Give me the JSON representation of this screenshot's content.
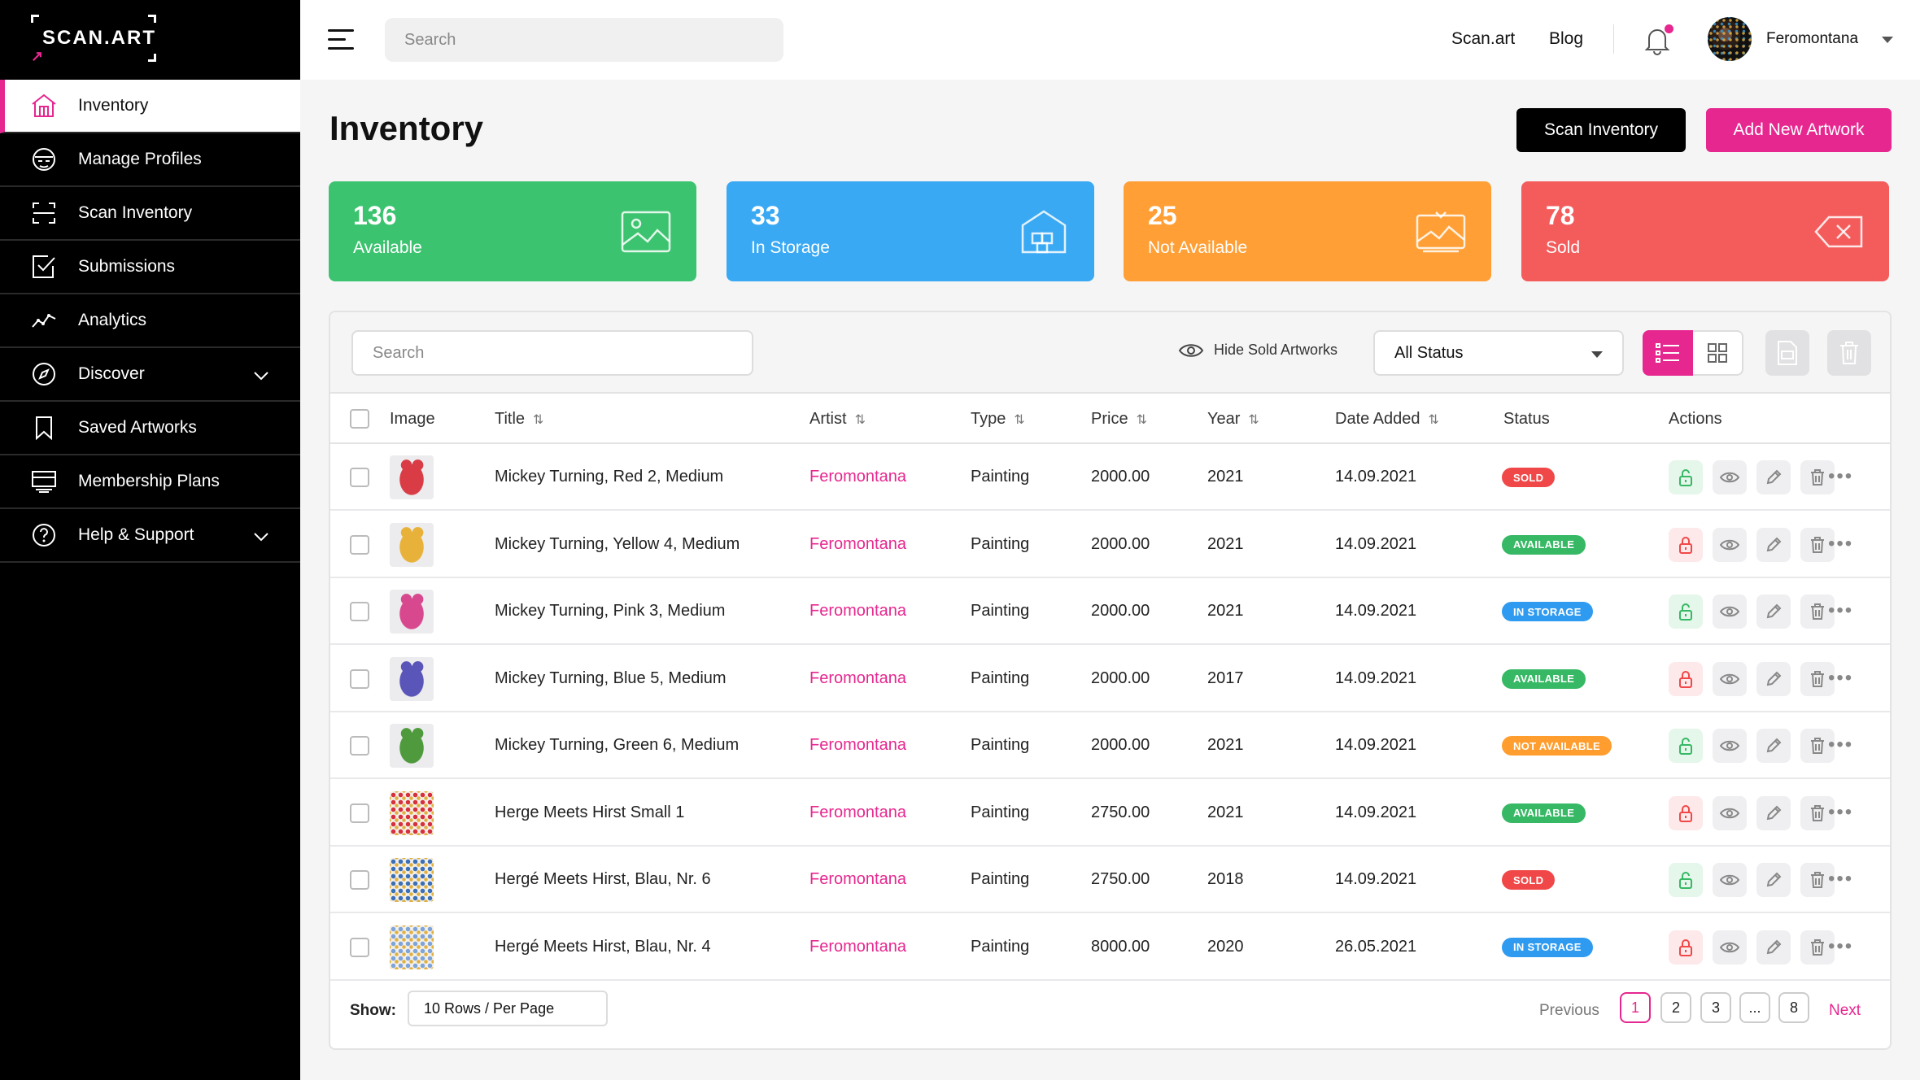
{
  "app": {
    "logo_text": "SCAN.ART"
  },
  "sidebar": {
    "items": [
      {
        "label": "Inventory",
        "icon": "home-icon",
        "active": true
      },
      {
        "label": "Manage Profiles",
        "icon": "profile-mask-icon"
      },
      {
        "label": "Scan Inventory",
        "icon": "scan-frame-icon"
      },
      {
        "label": "Submissions",
        "icon": "checkbox-icon"
      },
      {
        "label": "Analytics",
        "icon": "trend-line-icon"
      },
      {
        "label": "Discover",
        "icon": "compass-icon",
        "expandable": true
      },
      {
        "label": "Saved Artworks",
        "icon": "bookmark-icon"
      },
      {
        "label": "Membership Plans",
        "icon": "card-stack-icon"
      },
      {
        "label": "Help & Support",
        "icon": "question-circle-icon",
        "expandable": true
      }
    ]
  },
  "topbar": {
    "search_placeholder": "Search",
    "links": [
      "Scan.art",
      "Blog"
    ],
    "username": "Feromontana",
    "has_notification": true
  },
  "header": {
    "title": "Inventory",
    "scan_button": "Scan Inventory",
    "add_button": "Add New Artwork"
  },
  "stats": [
    {
      "value": "136",
      "label": "Available",
      "color": "#3cc36f",
      "icon": "image-icon"
    },
    {
      "value": "33",
      "label": "In Storage",
      "color": "#3aa9f3",
      "icon": "warehouse-icon"
    },
    {
      "value": "25",
      "label": "Not Available",
      "color": "#ff9f35",
      "icon": "image-broken-icon"
    },
    {
      "value": "78",
      "label": "Sold",
      "color": "#f45c5c",
      "icon": "backspace-icon"
    }
  ],
  "toolbar": {
    "search_placeholder": "Search",
    "hide_sold": "Hide Sold Artworks",
    "status_filter": "All Status"
  },
  "table": {
    "columns": [
      "Image",
      "Title",
      "Artist",
      "Type",
      "Price",
      "Year",
      "Date Added",
      "Status",
      "Actions"
    ],
    "rows": [
      {
        "title": "Mickey Turning, Red 2, Medium",
        "artist": "Feromontana",
        "type": "Painting",
        "price": "2000.00",
        "year": "2021",
        "date": "14.09.2021",
        "status": "SOLD",
        "lock": "unlocked",
        "thumb": "#d93c45"
      },
      {
        "title": "Mickey Turning, Yellow 4, Medium",
        "artist": "Feromontana",
        "type": "Painting",
        "price": "2000.00",
        "year": "2021",
        "date": "14.09.2021",
        "status": "AVAILABLE",
        "lock": "locked",
        "thumb": "#e8b23a"
      },
      {
        "title": "Mickey Turning, Pink 3, Medium",
        "artist": "Feromontana",
        "type": "Painting",
        "price": "2000.00",
        "year": "2021",
        "date": "14.09.2021",
        "status": "IN STORAGE",
        "lock": "unlocked",
        "thumb": "#d8488f"
      },
      {
        "title": "Mickey Turning, Blue 5, Medium",
        "artist": "Feromontana",
        "type": "Painting",
        "price": "2000.00",
        "year": "2017",
        "date": "14.09.2021",
        "status": "AVAILABLE",
        "lock": "locked",
        "thumb": "#5a55b8"
      },
      {
        "title": "Mickey Turning, Green 6, Medium",
        "artist": "Feromontana",
        "type": "Painting",
        "price": "2000.00",
        "year": "2021",
        "date": "14.09.2021",
        "status": "NOT AVAILABLE",
        "lock": "unlocked",
        "thumb": "#4f9a3d"
      },
      {
        "title": "Herge Meets Hirst Small 1",
        "artist": "Feromontana",
        "type": "Painting",
        "price": "2750.00",
        "year": "2021",
        "date": "14.09.2021",
        "status": "AVAILABLE",
        "lock": "locked",
        "thumb": "#d72f3c"
      },
      {
        "title": "Hergé Meets Hirst, Blau, Nr. 6",
        "artist": "Feromontana",
        "type": "Painting",
        "price": "2750.00",
        "year": "2018",
        "date": "14.09.2021",
        "status": "SOLD",
        "lock": "unlocked",
        "thumb": "#3b6fb6"
      },
      {
        "title": "Hergé Meets Hirst, Blau, Nr. 4",
        "artist": "Feromontana",
        "type": "Painting",
        "price": "8000.00",
        "year": "2020",
        "date": "26.05.2021",
        "status": "IN STORAGE",
        "lock": "locked",
        "thumb": "#7fa4d8"
      }
    ]
  },
  "status_colors": {
    "SOLD": "#f04848",
    "AVAILABLE": "#36b864",
    "IN STORAGE": "#2f9bf0",
    "NOT AVAILABLE": "#ff9d2e"
  },
  "footer": {
    "show_label": "Show:",
    "rows_per_page": "10 Rows / Per Page",
    "previous": "Previous",
    "next": "Next",
    "pages": [
      "1",
      "2",
      "3",
      "...",
      "8"
    ],
    "current_page": "1"
  }
}
